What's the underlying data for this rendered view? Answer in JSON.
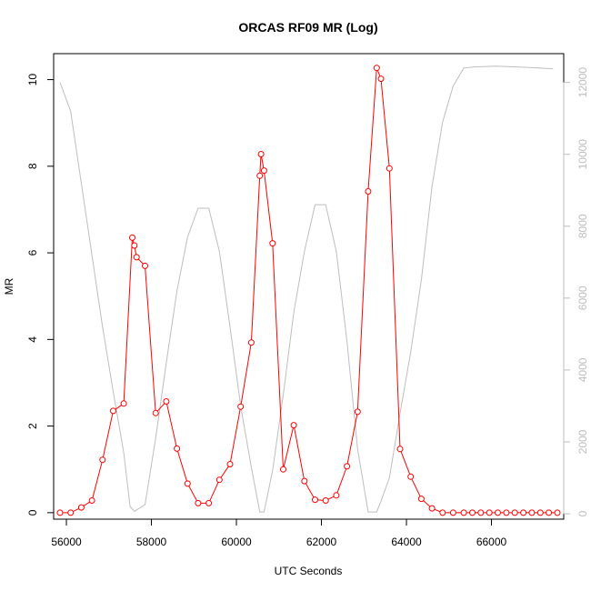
{
  "chart_data": {
    "type": "line",
    "title": "ORCAS RF09 MR (Log)",
    "xlabel": "UTC Seconds",
    "ylabel": "MR",
    "ylabel_right": "",
    "xlim": [
      55700,
      67700
    ],
    "ylim": [
      -0.15,
      10.6
    ],
    "ylim_right": [
      -150,
      12800
    ],
    "x_ticks": [
      56000,
      58000,
      60000,
      62000,
      64000,
      66000
    ],
    "x_tick_labels": [
      "56000",
      "58000",
      "60000",
      "62000",
      "64000",
      "66000"
    ],
    "y_ticks": [
      0,
      2,
      4,
      6,
      8,
      10
    ],
    "y_tick_labels": [
      "0",
      "2",
      "4",
      "6",
      "8",
      "10"
    ],
    "y_ticks_right": [
      0,
      2000,
      4000,
      6000,
      8000,
      10000,
      12000
    ],
    "y_tick_labels_right": [
      "0",
      "2000",
      "4000",
      "6000",
      "8000",
      "10000",
      "12000"
    ],
    "grid": false,
    "colors": {
      "mr": "#ff0000",
      "altitude": "#bebebe",
      "axis": "#000000",
      "axis_right": "#bdbdbd"
    },
    "series": [
      {
        "axis": "left",
        "style": "line-markers",
        "x": [
          55850,
          56100,
          56350,
          56600,
          56850,
          57100,
          57350,
          57550,
          57600,
          57650,
          57850,
          58100,
          58350,
          58600,
          58850,
          59100,
          59350,
          59600,
          59850,
          60100,
          60350,
          60550,
          60580,
          60650,
          60850,
          61100,
          61350,
          61600,
          61850,
          62100,
          62350,
          62600,
          62850,
          63100,
          63300,
          63400,
          63600,
          63850,
          64100,
          64350,
          64600,
          64850,
          65100,
          65350,
          65550,
          65750,
          65950,
          66150,
          66350,
          66550,
          66750,
          66950,
          67150,
          67350,
          67550
        ],
        "y": [
          0,
          0,
          0.12,
          0.28,
          1.22,
          2.35,
          2.52,
          6.35,
          6.17,
          5.9,
          5.7,
          2.3,
          2.57,
          1.48,
          0.67,
          0.22,
          0.22,
          0.76,
          1.12,
          2.45,
          3.93,
          7.78,
          8.28,
          7.9,
          6.22,
          1.0,
          2.02,
          0.73,
          0.3,
          0.28,
          0.4,
          1.07,
          2.33,
          7.42,
          10.27,
          10.02,
          7.95,
          1.47,
          0.83,
          0.32,
          0.1,
          0,
          0,
          0,
          0,
          0,
          0,
          0,
          0,
          0,
          0,
          0,
          0,
          0,
          0
        ]
      },
      {
        "axis": "right",
        "style": "line",
        "x": [
          55850,
          56100,
          56350,
          56600,
          56850,
          57100,
          57350,
          57500,
          57600,
          57850,
          58100,
          58350,
          58600,
          58850,
          59100,
          59350,
          59600,
          59850,
          60100,
          60350,
          60550,
          60650,
          60850,
          61100,
          61350,
          61600,
          61850,
          62100,
          62350,
          62600,
          62850,
          63100,
          63300,
          63400,
          63600,
          63850,
          64100,
          64350,
          64600,
          64850,
          65100,
          65350,
          65600,
          66100,
          66600,
          67100,
          67450
        ],
        "y": [
          12000,
          11200,
          9200,
          7200,
          5200,
          3400,
          1700,
          200,
          70,
          250,
          2100,
          4200,
          6200,
          7700,
          8500,
          8500,
          7300,
          5200,
          3000,
          1300,
          50,
          50,
          1200,
          3300,
          5600,
          7300,
          8600,
          8600,
          7300,
          4800,
          1800,
          50,
          50,
          350,
          1000,
          2800,
          4500,
          6500,
          9100,
          10900,
          11900,
          12400,
          12430,
          12450,
          12430,
          12400,
          12380
        ]
      }
    ]
  }
}
